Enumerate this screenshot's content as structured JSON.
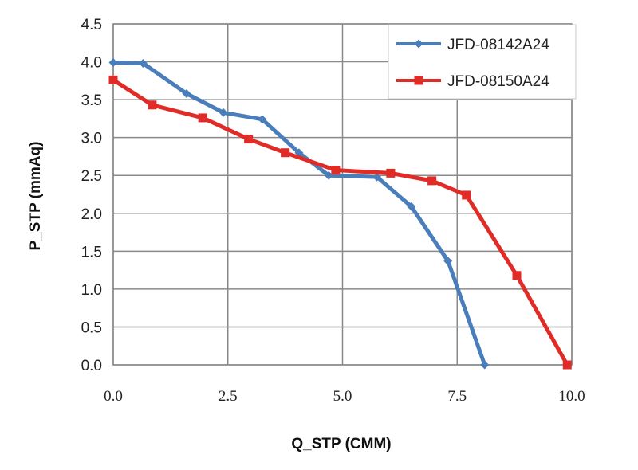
{
  "chart_data": {
    "type": "line",
    "xlabel": "Q_STP (CMM)",
    "ylabel": "P_STP (mmAq)",
    "xlim": [
      0,
      10
    ],
    "ylim": [
      0,
      4.5
    ],
    "x_ticks": [
      "0.0",
      "2.5",
      "5.0",
      "7.5",
      "10.0"
    ],
    "y_ticks": [
      "0.0",
      "0.5",
      "1.0",
      "1.5",
      "2.0",
      "2.5",
      "3.0",
      "3.5",
      "4.0",
      "4.5"
    ],
    "x_tick_values": [
      0,
      2.5,
      5,
      7.5,
      10
    ],
    "y_tick_values": [
      0,
      0.5,
      1,
      1.5,
      2,
      2.5,
      3,
      3.5,
      4,
      4.5
    ],
    "grid": true,
    "legend_position": "top-right",
    "series": [
      {
        "name": "JFD-08142A24",
        "color": "#4a7ebb",
        "marker": "diamond",
        "points": [
          [
            0.0,
            3.99
          ],
          [
            0.65,
            3.98
          ],
          [
            1.6,
            3.58
          ],
          [
            2.4,
            3.33
          ],
          [
            3.25,
            3.24
          ],
          [
            4.05,
            2.8
          ],
          [
            4.7,
            2.5
          ],
          [
            5.75,
            2.48
          ],
          [
            6.5,
            2.09
          ],
          [
            7.3,
            1.37
          ],
          [
            8.1,
            0.0
          ]
        ]
      },
      {
        "name": "JFD-08150A24",
        "color": "#e02b27",
        "marker": "square",
        "points": [
          [
            0.0,
            3.76
          ],
          [
            0.85,
            3.43
          ],
          [
            1.95,
            3.26
          ],
          [
            2.95,
            2.98
          ],
          [
            3.75,
            2.8
          ],
          [
            4.85,
            2.57
          ],
          [
            6.05,
            2.53
          ],
          [
            6.95,
            2.43
          ],
          [
            7.7,
            2.24
          ],
          [
            8.8,
            1.18
          ],
          [
            9.9,
            0.0
          ]
        ]
      }
    ]
  }
}
